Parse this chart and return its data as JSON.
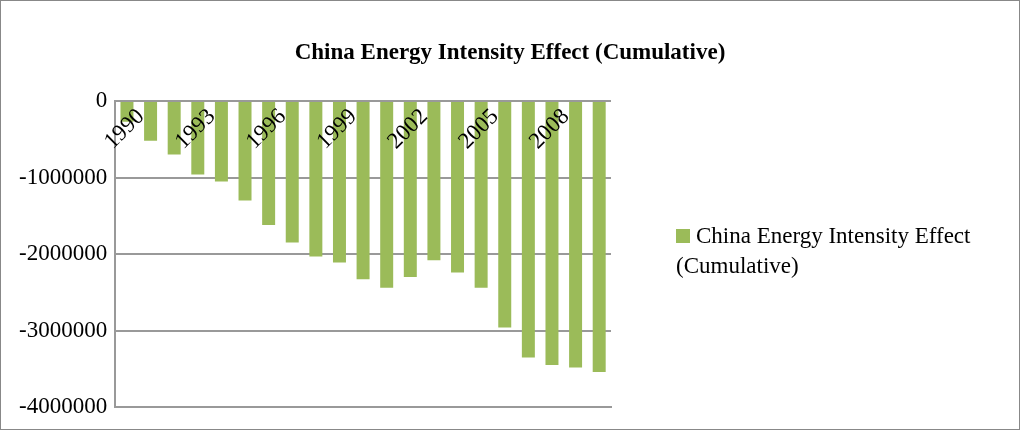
{
  "chart_data": {
    "type": "bar",
    "title": "China Energy Intensity Effect (Cumulative)",
    "categories": [
      "1990",
      null,
      null,
      "1993",
      null,
      null,
      "1996",
      null,
      null,
      "1999",
      null,
      null,
      "2002",
      null,
      null,
      "2005",
      null,
      null,
      "2008",
      null,
      null
    ],
    "series": [
      {
        "name": "China Energy Intensity Effect (Cumulative)",
        "color": "#9bbb59",
        "values": [
          -270000,
          -520000,
          -700000,
          -960000,
          -1050000,
          -1300000,
          -1620000,
          -1850000,
          -2030000,
          -2110000,
          -2330000,
          -2440000,
          -2300000,
          -2080000,
          -2240000,
          -2440000,
          -2960000,
          -3350000,
          -3450000,
          -3480000,
          -3540000
        ]
      }
    ],
    "ylim": [
      -4000000,
      0
    ],
    "yticks": [
      -4000000,
      -3000000,
      -2000000,
      -1000000,
      0
    ],
    "grid": "y",
    "legend": "right"
  }
}
